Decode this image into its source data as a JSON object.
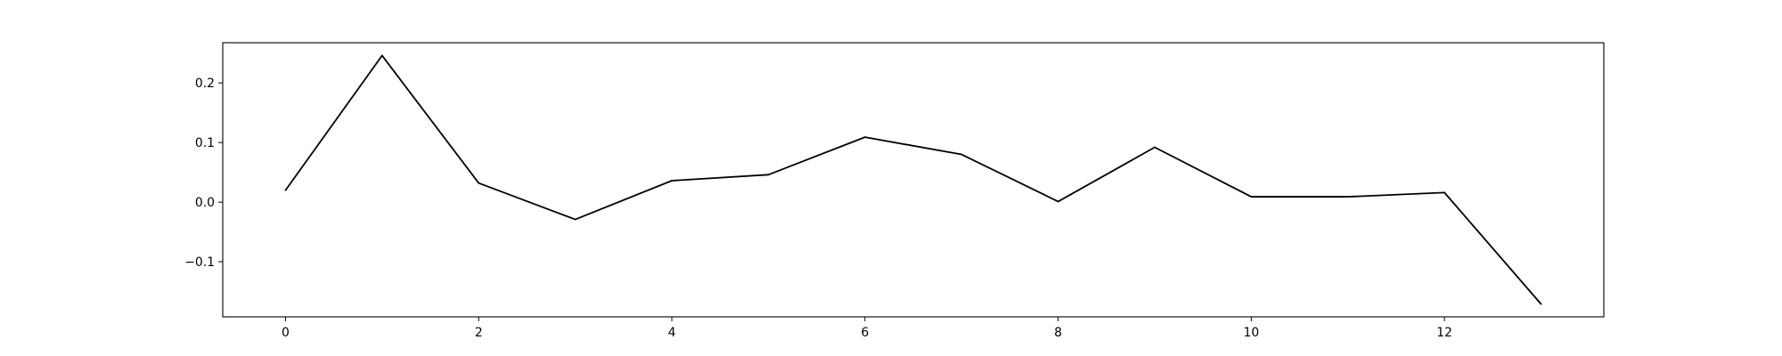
{
  "chart_data": {
    "type": "line",
    "title": "",
    "xlabel": "",
    "ylabel": "",
    "x": [
      0,
      1,
      2,
      3,
      4,
      5,
      6,
      7,
      8,
      9,
      10,
      11,
      12,
      13
    ],
    "series": [
      {
        "values": [
          0.02,
          0.246,
          0.032,
          -0.029,
          0.036,
          0.046,
          0.109,
          0.08,
          0.001,
          0.092,
          0.009,
          0.009,
          0.016,
          -0.171
        ],
        "color": "#000000"
      }
    ],
    "xlim": [
      -0.65,
      13.65
    ],
    "ylim": [
      -0.1925,
      0.2675
    ],
    "xticks": [
      0,
      2,
      4,
      6,
      8,
      10,
      12
    ],
    "xtick_labels": [
      "0",
      "2",
      "4",
      "6",
      "8",
      "10",
      "12"
    ],
    "yticks": [
      -0.1,
      0.0,
      0.1,
      0.2
    ],
    "ytick_labels": [
      "−0.1",
      "0.0",
      "0.1",
      "0.2"
    ],
    "grid": false,
    "legend": "none"
  }
}
